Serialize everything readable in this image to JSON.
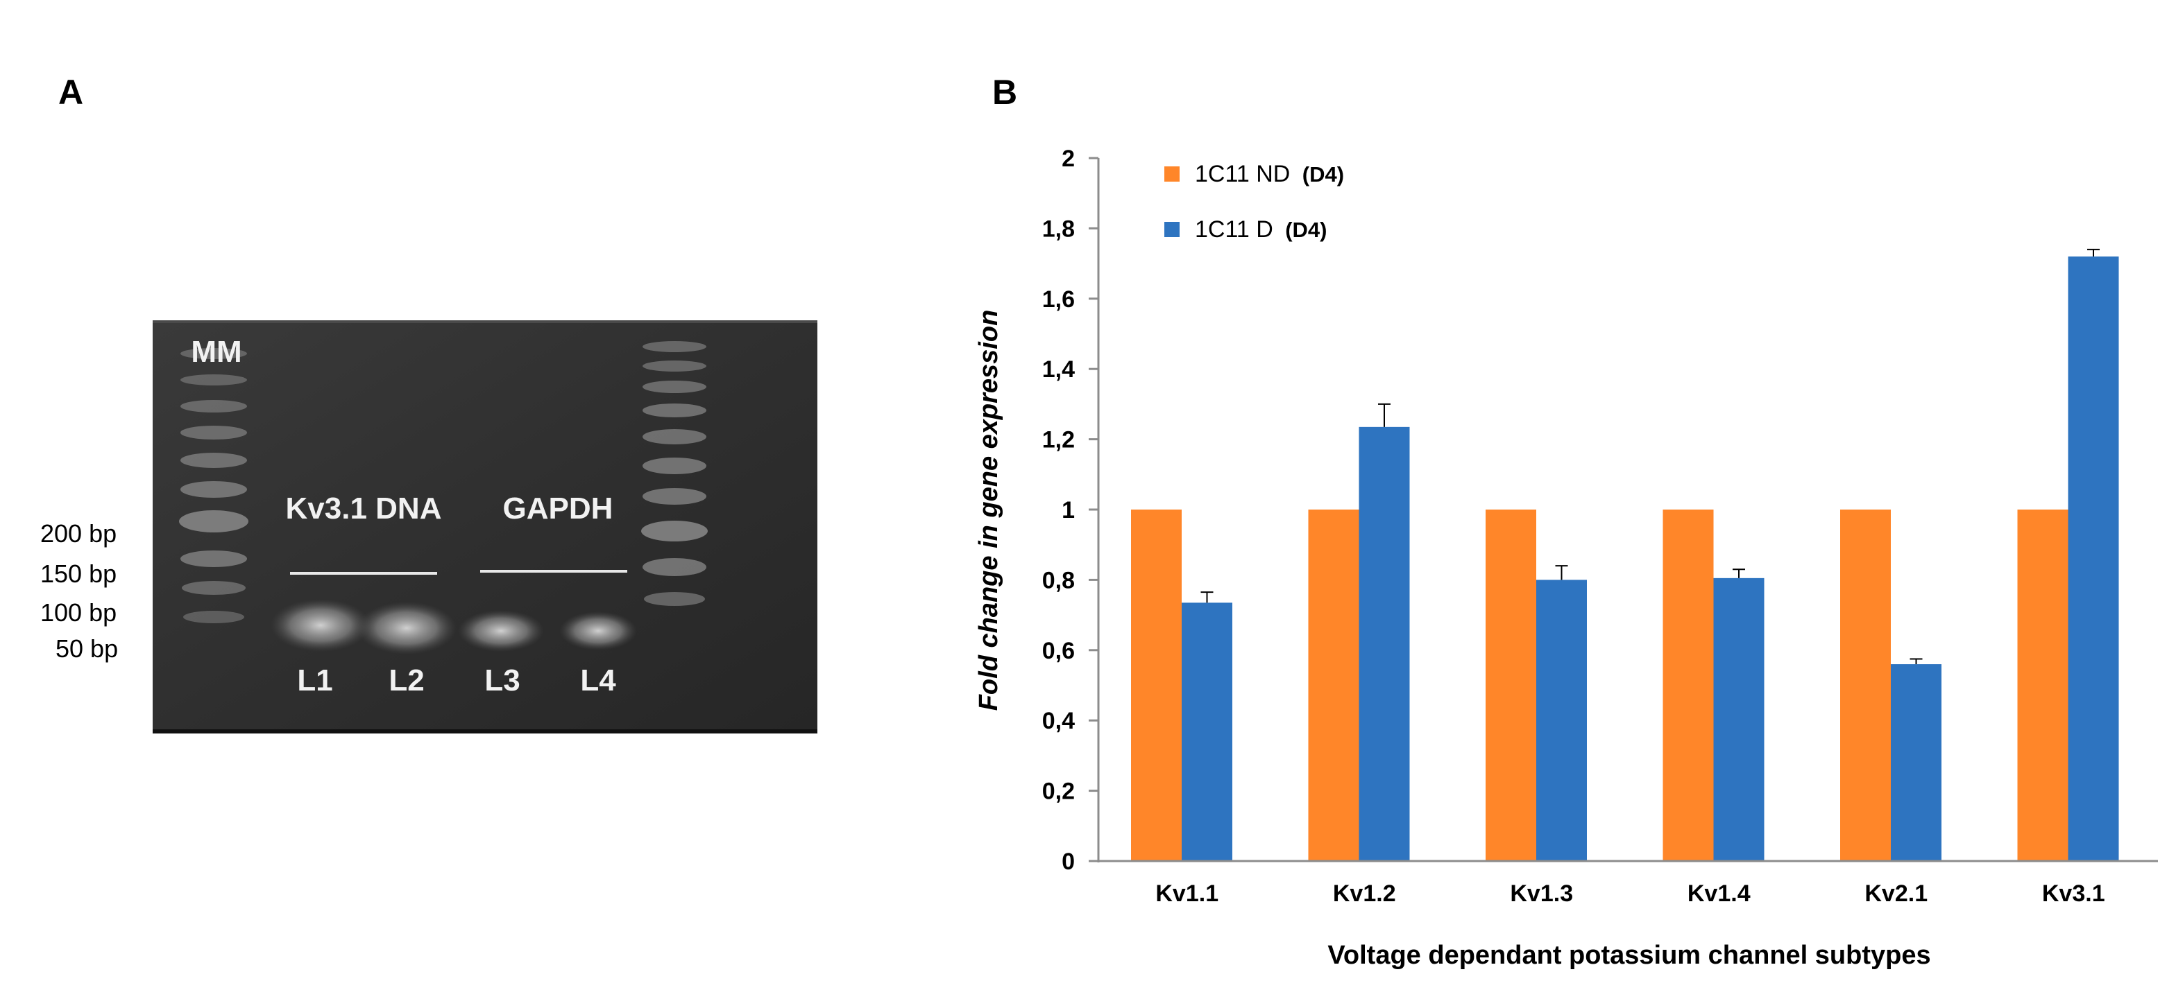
{
  "panel_a": {
    "label": "A",
    "gel": {
      "marker_label": "MM",
      "group_labels": [
        "Kv3.1 DNA",
        "GAPDH"
      ],
      "lane_labels": [
        "L1",
        "L2",
        "L3",
        "L4"
      ],
      "size_labels": [
        "200 bp",
        "150 bp",
        "100 bp",
        "50 bp"
      ]
    }
  },
  "panel_b": {
    "label": "B"
  },
  "chart_data": {
    "type": "bar",
    "title": "",
    "xlabel": "Voltage dependant potassium channel subtypes",
    "ylabel": "Fold change in gene expression",
    "categories": [
      "Kv1.1",
      "Kv1.2",
      "Kv1.3",
      "Kv1.4",
      "Kv2.1",
      "Kv3.1"
    ],
    "ylim": [
      0,
      2
    ],
    "yticks": [
      "0",
      "0,2",
      "0,4",
      "0,6",
      "0,8",
      "1",
      "1,2",
      "1,4",
      "1,6",
      "1,8",
      "2"
    ],
    "grid": false,
    "legend_position": "top-left",
    "series": [
      {
        "name": "1C11 ND",
        "name_suffix": "(D4)",
        "color": "#ff8629",
        "values": [
          1,
          1,
          1,
          1,
          1,
          1
        ],
        "errors": [
          0,
          0,
          0,
          0,
          0,
          0
        ]
      },
      {
        "name": "1C11 D",
        "name_suffix": "(D4)",
        "color": "#2e74c0",
        "values": [
          0.735,
          1.235,
          0.8,
          0.805,
          0.56,
          1.72
        ],
        "errors": [
          0.03,
          0.065,
          0.04,
          0.025,
          0.015,
          0.02
        ]
      }
    ]
  }
}
